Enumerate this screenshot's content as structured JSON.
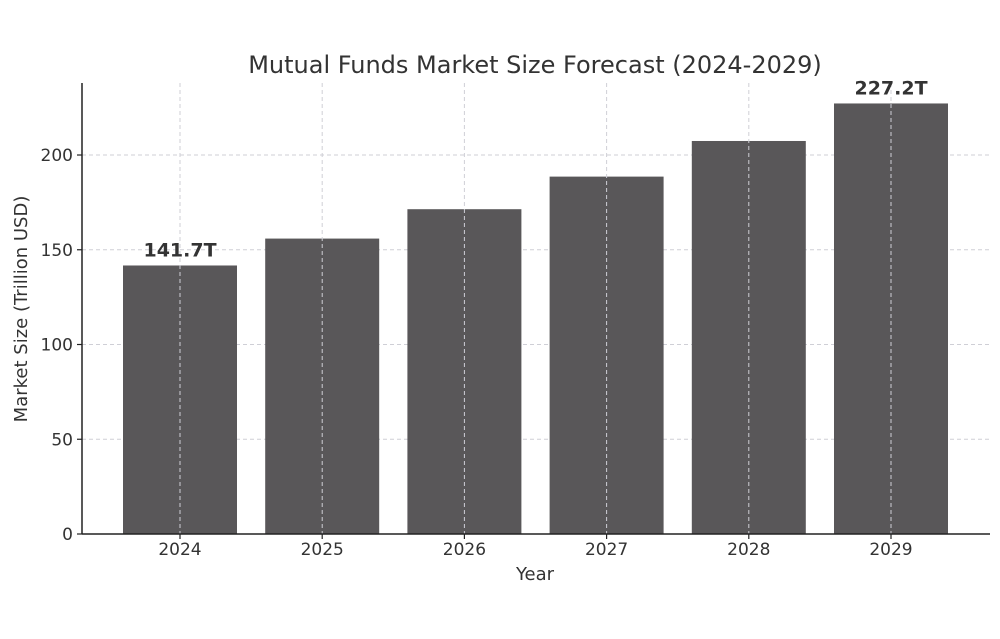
{
  "chart_data": {
    "type": "bar",
    "title": "Mutual Funds Market Size Forecast (2024-2029)",
    "xlabel": "Year",
    "ylabel": "Market Size (Trillion USD)",
    "categories": [
      "2024",
      "2025",
      "2026",
      "2027",
      "2028",
      "2029"
    ],
    "values": [
      141.7,
      155.9,
      171.4,
      188.6,
      207.4,
      227.2
    ],
    "data_labels": [
      {
        "category": "2024",
        "text": "141.7T"
      },
      {
        "category": "2029",
        "text": "227.2T"
      }
    ],
    "ylim": [
      0,
      238
    ],
    "yticks": [
      0,
      50,
      100,
      150,
      200
    ],
    "grid": true,
    "bar_color": "#595759"
  }
}
